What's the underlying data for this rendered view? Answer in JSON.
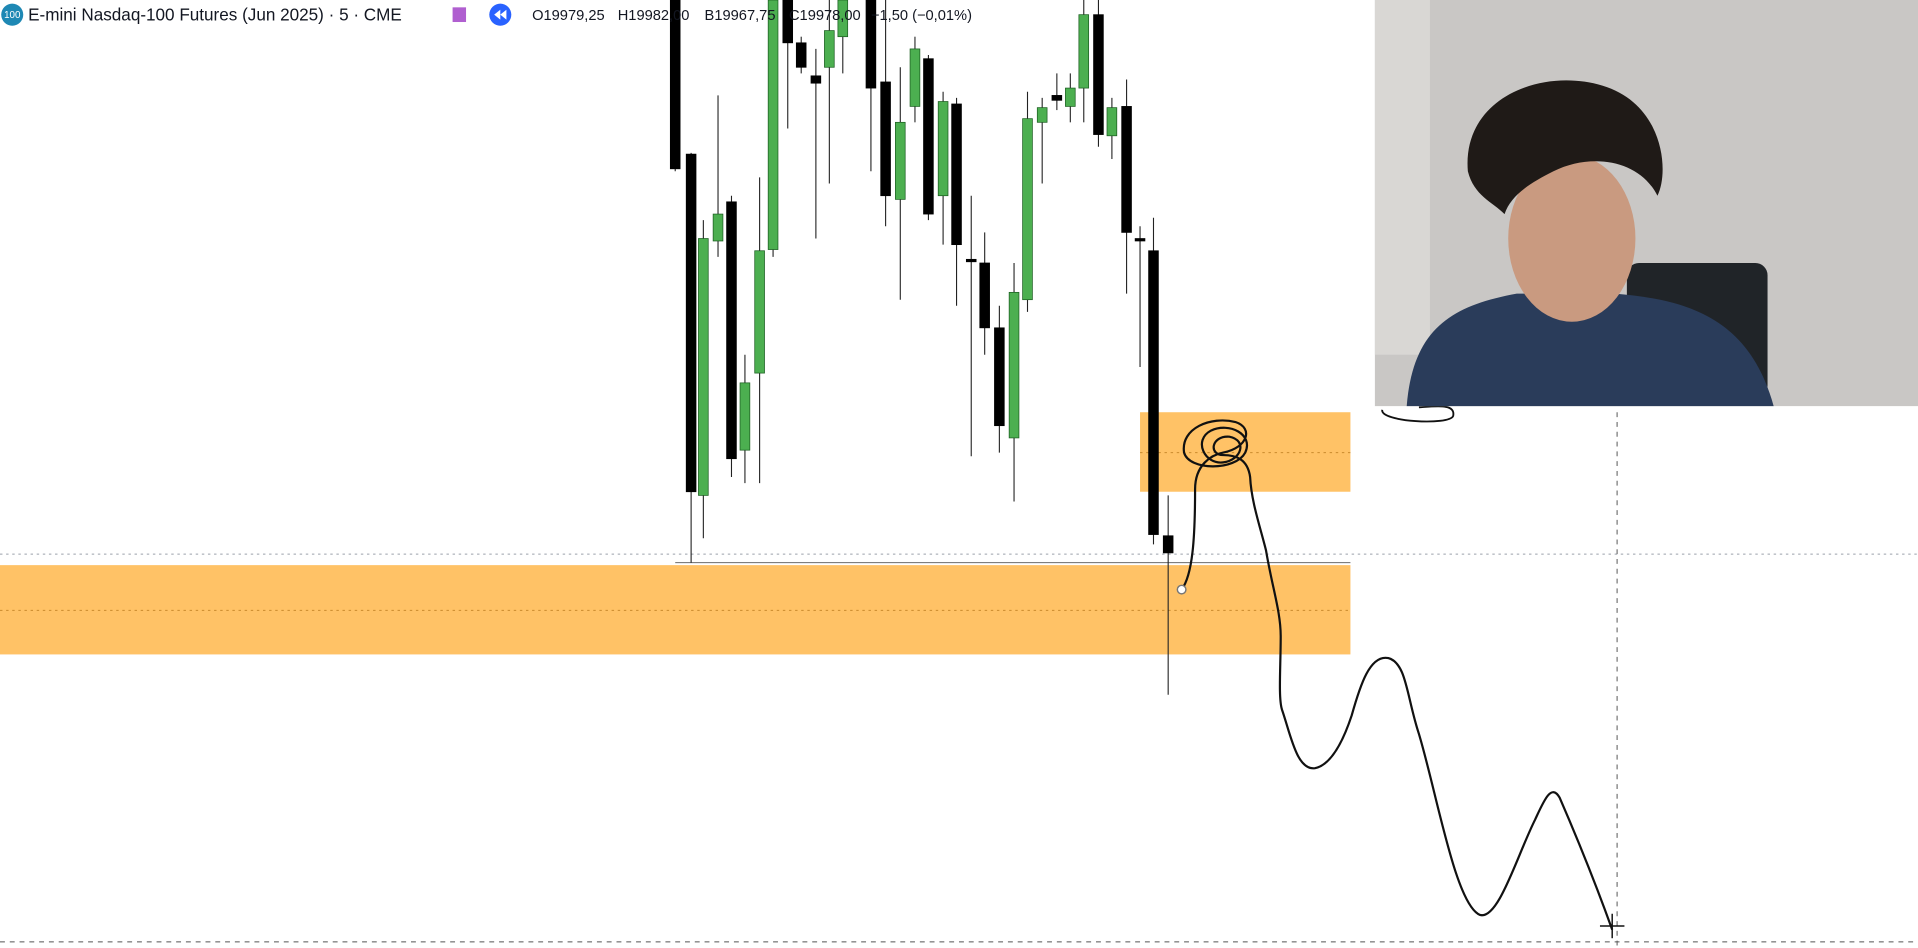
{
  "header": {
    "badge": "100",
    "symbol": "E-mini Nasdaq-100 Futures (Jun 2025) · 5 · CME",
    "open": "O19979,25",
    "high": "H19982,00",
    "low": "B19967,75",
    "close": "C19978,00",
    "change": "−1,50 (−0,01%)"
  }
}
